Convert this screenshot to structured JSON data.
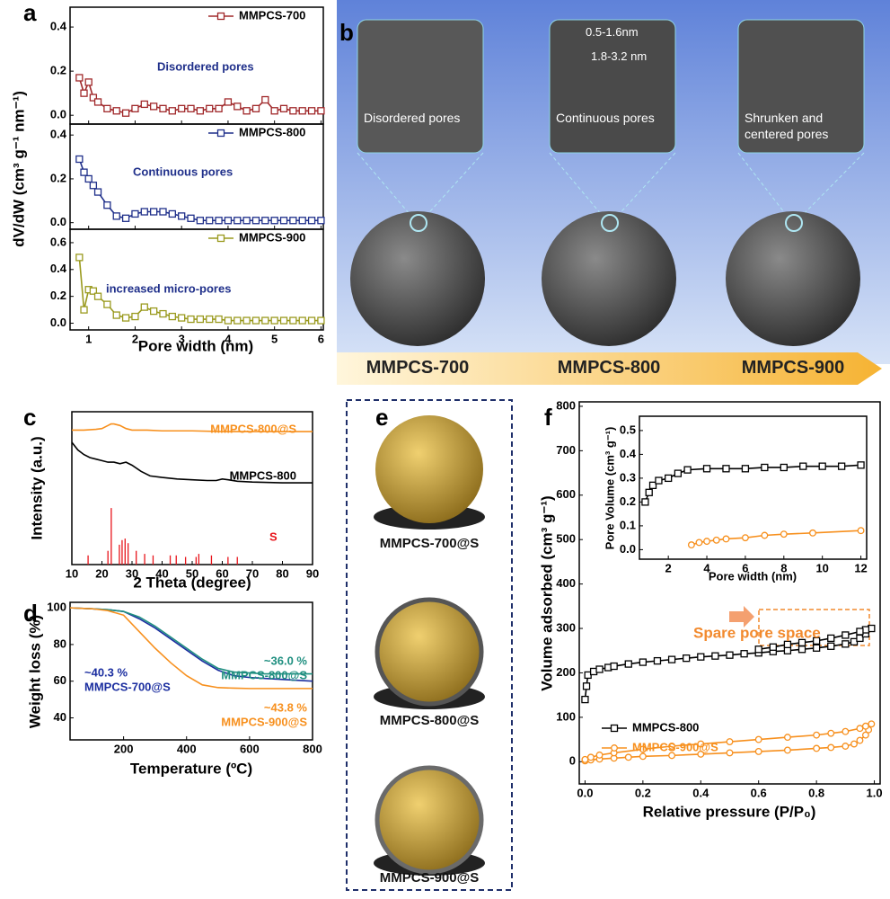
{
  "chart_data": [
    {
      "type": "line-stack",
      "panel": "a",
      "xlabel": "Pore width (nm)",
      "ylabel": "dV/dW (cm³ g⁻¹ nm⁻¹)",
      "xlim": [
        0.6,
        6.05
      ],
      "xticks": [
        1,
        2,
        3,
        4,
        5,
        6
      ],
      "legend": "upper right",
      "x": [
        0.8,
        0.9,
        1.0,
        1.1,
        1.2,
        1.4,
        1.6,
        1.8,
        2.0,
        2.2,
        2.4,
        2.6,
        2.8,
        3.0,
        3.2,
        3.4,
        3.6,
        3.8,
        4.0,
        4.2,
        4.4,
        4.6,
        4.8,
        5.0,
        5.2,
        5.4,
        5.6,
        5.8,
        6.0
      ],
      "series": [
        {
          "name": "MMPCS-700",
          "color": "#a0282a",
          "marker": "square",
          "annotation": "Disordered pores",
          "ylim": [
            -0.04,
            0.49
          ],
          "yticks": [
            {
              "value": 0,
              "label": "0.0"
            },
            0.2,
            0.4
          ],
          "values": [
            0.17,
            0.1,
            0.15,
            0.08,
            0.06,
            0.03,
            0.02,
            0.01,
            0.03,
            0.05,
            0.04,
            0.03,
            0.02,
            0.03,
            0.03,
            0.02,
            0.03,
            0.03,
            0.06,
            0.04,
            0.02,
            0.03,
            0.07,
            0.02,
            0.03,
            0.02,
            0.02,
            0.02,
            0.02
          ]
        },
        {
          "name": "MMPCS-800",
          "color": "#1f2f8a",
          "marker": "square",
          "annotation": "Continuous pores",
          "ylim": [
            -0.03,
            0.45
          ],
          "yticks": [
            {
              "value": 0,
              "label": "0.0"
            },
            0.2,
            0.4
          ],
          "values": [
            0.29,
            0.23,
            0.2,
            0.17,
            0.14,
            0.08,
            0.03,
            0.02,
            0.04,
            0.05,
            0.05,
            0.05,
            0.04,
            0.03,
            0.02,
            0.01,
            0.01,
            0.01,
            0.01,
            0.01,
            0.01,
            0.01,
            0.01,
            0.01,
            0.01,
            0.01,
            0.01,
            0.01,
            0.01
          ]
        },
        {
          "name": "MMPCS-900",
          "color": "#9a9a1e",
          "marker": "square",
          "annotation": "increased micro-pores",
          "ylim": [
            -0.05,
            0.7
          ],
          "yticks": [
            {
              "value": 0,
              "label": "0.0"
            },
            0.2,
            0.4,
            0.6
          ],
          "values": [
            0.49,
            0.1,
            0.25,
            0.24,
            0.2,
            0.14,
            0.06,
            0.04,
            0.05,
            0.12,
            0.09,
            0.07,
            0.05,
            0.04,
            0.03,
            0.03,
            0.03,
            0.03,
            0.02,
            0.02,
            0.02,
            0.02,
            0.02,
            0.02,
            0.02,
            0.02,
            0.02,
            0.02,
            0.02
          ]
        }
      ]
    },
    {
      "type": "line",
      "panel": "c",
      "xlabel": "2 Theta (degree)",
      "ylabel": "Intensity (a.u.)",
      "xlim": [
        10,
        90
      ],
      "xticks": [
        10,
        20,
        30,
        40,
        50,
        60,
        70,
        80,
        90
      ],
      "ylim": [
        0,
        100
      ],
      "series": [
        {
          "name": "MMPCS-800@S",
          "color": "#f7901e",
          "x": [
            10,
            14,
            18,
            20,
            22,
            23,
            24,
            26,
            28,
            30,
            35,
            40,
            50,
            60,
            70,
            80,
            90
          ],
          "values": [
            88,
            88,
            88.5,
            89,
            91,
            92,
            92,
            91,
            89,
            88,
            88,
            87.5,
            87.5,
            87,
            87,
            87,
            87
          ]
        },
        {
          "name": "MMPCS-800",
          "color": "#000000",
          "x": [
            10,
            12,
            14,
            16,
            18,
            20,
            22,
            24,
            26,
            28,
            30,
            33,
            36,
            40,
            45,
            50,
            55,
            58,
            60,
            62,
            65,
            70,
            80,
            90
          ],
          "values": [
            80,
            75,
            72,
            70,
            69,
            68,
            67,
            67,
            66,
            67,
            65,
            61,
            58,
            57,
            56,
            55.5,
            55,
            55,
            56,
            55.5,
            54.5,
            54,
            53.5,
            53.5
          ]
        },
        {
          "name": "S",
          "color": "#e8141b",
          "style": "sticks",
          "x": [
            15.4,
            22.0,
            23.1,
            25.8,
            26.7,
            27.7,
            28.7,
            31.4,
            34.2,
            37.0,
            42.7,
            44.7,
            47.8,
            51.3,
            52.2,
            56.4,
            61.9,
            65.0
          ],
          "values": [
            6,
            9,
            37,
            13,
            16,
            17,
            14,
            9,
            7,
            6,
            6,
            6,
            5,
            5,
            7,
            6,
            5,
            5
          ]
        }
      ]
    },
    {
      "type": "line",
      "panel": "d",
      "xlabel": "Temperature (ºC)",
      "ylabel": "Weight loss (%)",
      "xlim": [
        30,
        800
      ],
      "xticks": [
        200,
        400,
        600,
        800
      ],
      "ylim": [
        28,
        103
      ],
      "yticks": [
        40,
        60,
        80,
        100
      ],
      "x": [
        30,
        100,
        150,
        200,
        250,
        300,
        350,
        400,
        450,
        500,
        550,
        600,
        650,
        700,
        750,
        800
      ],
      "series": [
        {
          "name": "MMPCS-700@S",
          "color": "#1c2fa0",
          "annotation": "~40.3 %",
          "values": [
            100,
            99.5,
            99,
            98,
            94,
            89,
            83,
            77,
            71,
            66,
            63,
            62,
            61.5,
            61,
            60.5,
            60
          ]
        },
        {
          "name": "MMPCS-800@S",
          "color": "#1f8f80",
          "annotation": "~36.0 %",
          "values": [
            100,
            99.5,
            99,
            98,
            95,
            90,
            84,
            78,
            72,
            67,
            65,
            64.5,
            64,
            64,
            64,
            64
          ]
        },
        {
          "name": "MMPCS-900@S",
          "color": "#f7901e",
          "annotation": "~43.8 %",
          "values": [
            100,
            99.5,
            98.5,
            96,
            87,
            78,
            70,
            63,
            58,
            56.5,
            56.2,
            56,
            56,
            56,
            56,
            56
          ]
        }
      ]
    },
    {
      "type": "line",
      "panel": "f",
      "xlabel": "Relative pressure (P/P₀)",
      "ylabel": "Volume adsorbed (cm³ g⁻¹)",
      "annotation": "Spare pore space",
      "legend": "lower left",
      "xlim": [
        -0.02,
        1.02
      ],
      "xticks": [
        {
          "value": 0,
          "label": "0.0"
        },
        0.2,
        0.4,
        0.6,
        0.8,
        {
          "value": 1,
          "label": "1.0"
        }
      ],
      "ylim": [
        -50,
        810
      ],
      "yticks": [
        0,
        100,
        200,
        300,
        400,
        500,
        600,
        700,
        800
      ],
      "series": [
        {
          "name": "MMPCS-800",
          "color": "#000000",
          "marker": "square",
          "x": [
            0.0,
            0.005,
            0.01,
            0.03,
            0.05,
            0.08,
            0.1,
            0.15,
            0.2,
            0.25,
            0.3,
            0.35,
            0.4,
            0.45,
            0.5,
            0.55,
            0.6,
            0.65,
            0.7,
            0.75,
            0.8,
            0.85,
            0.9,
            0.93,
            0.95,
            0.97,
            0.99,
            0.97,
            0.95,
            0.9,
            0.85,
            0.8,
            0.75,
            0.7,
            0.65,
            0.6
          ],
          "values": [
            140,
            170,
            195,
            203,
            208,
            212,
            215,
            220,
            224,
            227,
            230,
            233,
            236,
            238,
            240,
            243,
            245,
            248,
            250,
            253,
            256,
            260,
            265,
            270,
            278,
            288,
            300,
            297,
            293,
            285,
            278,
            272,
            268,
            264,
            258,
            253
          ]
        },
        {
          "name": "MMPCS-900@S",
          "color": "#f7901e",
          "marker": "circle",
          "x": [
            0.0,
            0.02,
            0.05,
            0.1,
            0.15,
            0.2,
            0.3,
            0.4,
            0.5,
            0.6,
            0.7,
            0.8,
            0.85,
            0.9,
            0.93,
            0.95,
            0.97,
            0.98,
            0.99,
            0.97,
            0.95,
            0.9,
            0.85,
            0.8,
            0.7,
            0.6,
            0.5,
            0.4,
            0.3,
            0.2,
            0.1,
            0.05,
            0.02,
            0.0
          ],
          "values": [
            2,
            4,
            6,
            8,
            10,
            12,
            14,
            17,
            20,
            23,
            26,
            30,
            32,
            35,
            40,
            48,
            60,
            72,
            85,
            80,
            75,
            68,
            64,
            60,
            55,
            50,
            45,
            40,
            35,
            28,
            20,
            15,
            10,
            5
          ]
        }
      ]
    },
    {
      "type": "line",
      "xlabel": "Pore width (nm)",
      "ylabel": "Pore Volume (cm³ g⁻¹)",
      "xlim": [
        0.5,
        12.3
      ],
      "xticks": [
        2,
        4,
        6,
        8,
        10,
        12
      ],
      "ylim": [
        -0.04,
        0.56
      ],
      "yticks": [
        {
          "value": 0,
          "label": "0.0"
        },
        0.1,
        0.2,
        0.3,
        0.4,
        0.5
      ],
      "series": [
        {
          "color": "#000000",
          "marker": "square",
          "x": [
            0.8,
            1,
            1.2,
            1.5,
            2,
            2.5,
            3,
            4,
            5,
            6,
            7,
            8,
            9,
            10,
            11,
            12
          ],
          "values": [
            0.2,
            0.24,
            0.27,
            0.29,
            0.3,
            0.32,
            0.335,
            0.34,
            0.34,
            0.34,
            0.345,
            0.345,
            0.35,
            0.35,
            0.35,
            0.355
          ]
        },
        {
          "color": "#f7901e",
          "marker": "circle",
          "x": [
            3.2,
            3.6,
            4,
            4.5,
            5,
            6,
            7,
            8,
            9.5,
            12
          ],
          "values": [
            0.02,
            0.03,
            0.035,
            0.04,
            0.045,
            0.05,
            0.06,
            0.065,
            0.07,
            0.08
          ]
        }
      ]
    }
  ],
  "images": {
    "b": {
      "panel": "b",
      "insets": [
        "Disordered pores",
        "Continuous pores",
        "Shrunken and centered pores"
      ],
      "dimensions": [
        "0.5-1.6nm",
        "1.8-3.2 nm"
      ],
      "samples": [
        "MMPCS-700",
        "MMPCS-800",
        "MMPCS-900"
      ]
    },
    "e": {
      "panel": "e",
      "samples": [
        "MMPCS-700@S",
        "MMPCS-800@S",
        "MMPCS-900@S"
      ]
    }
  }
}
